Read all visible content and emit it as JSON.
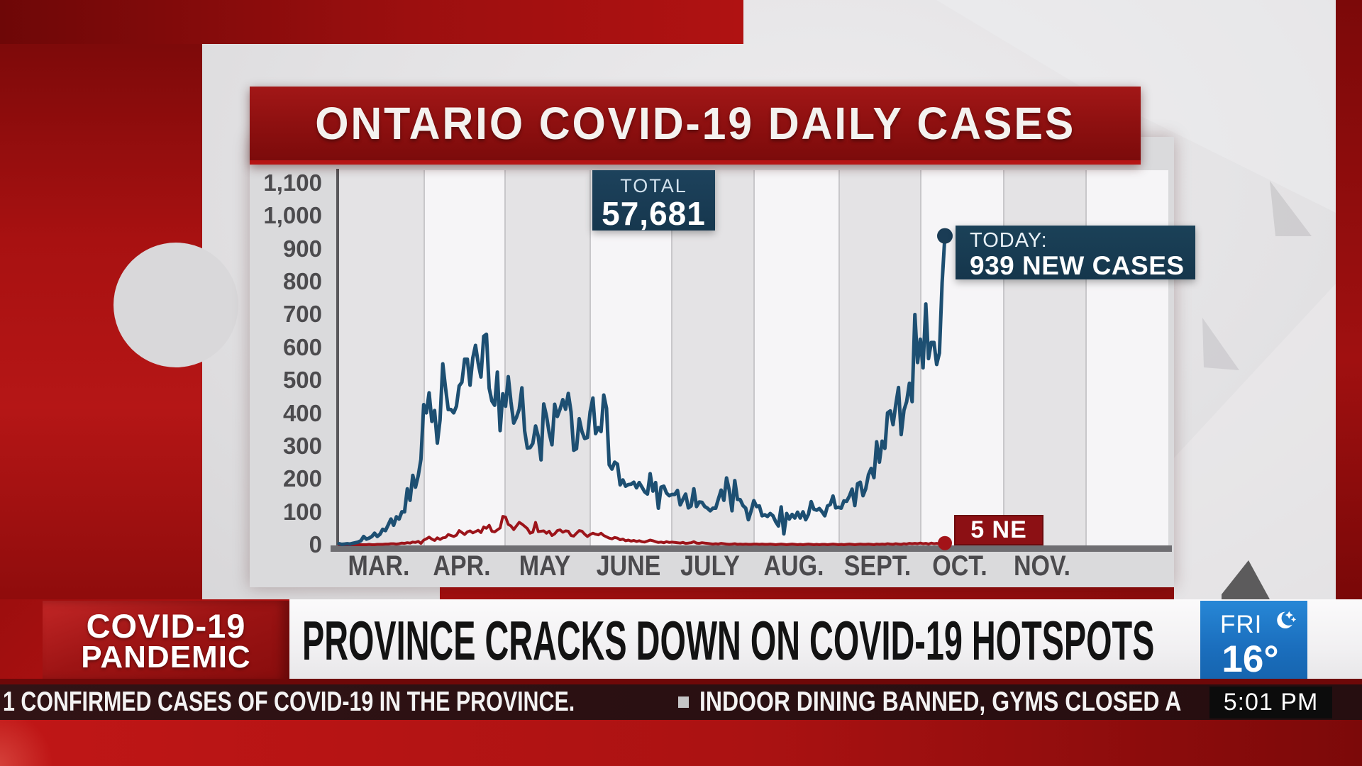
{
  "chart_data": {
    "type": "line",
    "title": "ONTARIO COVID-19 DAILY CASES",
    "x_axis": {
      "labels": [
        "MAR.",
        "APR.",
        "MAY",
        "JUNE",
        "JULY",
        "AUG.",
        "SEPT.",
        "OCT.",
        "NOV."
      ],
      "range": "one value per day, March 1 to October 9"
    },
    "y_axis": {
      "min": 0,
      "max": 1100,
      "tick_step": 100,
      "tick_labels": [
        "1,100",
        "1,000",
        "900",
        "800",
        "700",
        "600",
        "500",
        "400",
        "300",
        "200",
        "100",
        "0"
      ]
    },
    "grid": "alternating vertical month bands, no horizontal gridlines",
    "legend": "none",
    "series": [
      {
        "name": "daily new cases",
        "color": "#1d4f72",
        "endpoint_dot": true,
        "values": [
          3,
          1,
          2,
          3,
          2,
          4,
          6,
          8,
          12,
          25,
          17,
          20,
          25,
          35,
          25,
          32,
          47,
          43,
          60,
          78,
          59,
          85,
          78,
          100,
          100,
          170,
          135,
          211,
          175,
          210,
          260,
          426,
          401,
          462,
          375,
          408,
          309,
          379,
          550,
          478,
          411,
          411,
          401,
          421,
          483,
          494,
          564,
          564,
          485,
          568,
          606,
          551,
          510,
          634,
          640,
          476,
          437,
          424,
          525,
          347,
          459,
          421,
          511,
          434,
          370,
          387,
          412,
          477,
          346,
          294,
          295,
          308,
          361,
          329,
          258,
          428,
          391,
          340,
          304,
          427,
          390,
          413,
          441,
          412,
          460,
          404,
          287,
          292,
          383,
          344,
          323,
          326,
          404,
          446,
          338,
          356,
          344,
          455,
          415,
          243,
          230,
          251,
          245,
          182,
          197,
          178,
          183,
          184,
          190,
          173,
          189,
          175,
          161,
          154,
          216,
          163,
          189,
          111,
          175,
          178,
          157,
          149,
          153,
          153,
          165,
          121,
          138,
          154,
          112,
          118,
          170,
          116,
          130,
          129,
          116,
          111,
          103,
          111,
          111,
          139,
          166,
          135,
          203,
          165,
          103,
          195,
          138,
          137,
          119,
          111,
          76,
          103,
          134,
          116,
          118,
          88,
          91,
          86,
          95,
          88,
          70,
          57,
          115,
          33,
          95,
          78,
          92,
          81,
          99,
          81,
          100,
          76,
          92,
          131,
          108,
          105,
          110,
          100,
          88,
          118,
          122,
          148,
          112,
          114,
          111,
          133,
          132,
          148,
          169,
          119,
          185,
          190,
          149,
          170,
          213,
          232,
          204,
          313,
          251,
          315,
          293,
          401,
          407,
          365,
          425,
          478,
          335,
          409,
          435,
          491,
          435,
          700,
          554,
          625,
          538,
          732,
          566,
          615,
          615,
          548,
          583,
          797,
          939
        ]
      },
      {
        "name": "daily deaths",
        "color": "#9c141a",
        "endpoint_dot": true,
        "values": [
          0,
          0,
          0,
          0,
          0,
          0,
          0,
          0,
          0,
          0,
          0,
          1,
          0,
          0,
          1,
          1,
          1,
          2,
          2,
          3,
          3,
          2,
          3,
          5,
          4,
          6,
          5,
          8,
          7,
          10,
          4,
          14,
          18,
          23,
          17,
          13,
          21,
          16,
          21,
          22,
          31,
          28,
          25,
          29,
          43,
          37,
          31,
          39,
          42,
          36,
          40,
          44,
          37,
          54,
          50,
          59,
          41,
          39,
          45,
          51,
          86,
          84,
          62,
          57,
          46,
          57,
          68,
          63,
          56,
          49,
          35,
          38,
          68,
          40,
          41,
          42,
          35,
          41,
          28,
          33,
          43,
          45,
          38,
          42,
          41,
          28,
          26,
          35,
          43,
          41,
          32,
          25,
          31,
          35,
          32,
          30,
          35,
          28,
          24,
          20,
          18,
          22,
          20,
          15,
          17,
          12,
          14,
          11,
          13,
          10,
          12,
          9,
          8,
          11,
          14,
          12,
          9,
          7,
          8,
          6,
          9,
          7,
          8,
          7,
          6,
          5,
          7,
          4,
          5,
          6,
          9,
          5,
          4,
          6,
          5,
          4,
          3,
          2,
          3,
          2,
          4,
          3,
          2,
          1,
          2,
          3,
          1,
          2,
          1,
          2,
          1,
          1,
          2,
          2,
          1,
          2,
          1,
          1,
          2,
          1,
          0,
          1,
          2,
          1,
          0,
          1,
          2,
          1,
          0,
          1,
          0,
          1,
          2,
          1,
          0,
          1,
          0,
          1,
          1,
          0,
          1,
          2,
          1,
          0,
          1,
          0,
          1,
          2,
          1,
          0,
          1,
          2,
          1,
          1,
          2,
          1,
          0,
          2,
          1,
          2,
          1,
          3,
          2,
          1,
          3,
          2,
          1,
          3,
          2,
          4,
          3,
          4,
          3,
          5,
          3,
          4,
          2,
          5,
          3,
          4,
          3,
          4,
          5
        ]
      }
    ],
    "annotations": [
      "TOTAL 57,681",
      "TODAY: 939 NEW CASES",
      "5 NE"
    ]
  },
  "badges": {
    "total": {
      "label": "TOTAL",
      "value": "57,681"
    },
    "today": {
      "label": "TODAY:",
      "value": "939 NEW CASES"
    },
    "deaths": {
      "text": "5 NE"
    }
  },
  "lower_third": {
    "topic_line1": "COVID-19",
    "topic_line2": "PANDEMIC",
    "headline": "PROVINCE CRACKS DOWN ON COVID-19 HOTSPOTS"
  },
  "weather": {
    "day": "FRI",
    "temperature": "16°",
    "icon": "crescent-moon-icon"
  },
  "ticker": {
    "item1": "1 CONFIRMED CASES OF COVID-19 IN THE PROVINCE.",
    "item2": "INDOOR DINING BANNED, GYMS CLOSED A",
    "time": "5:01 PM"
  },
  "colors": {
    "banner_red": "#8e1010",
    "navy_badge": "#16374e",
    "cases_line": "#1d4f72",
    "deaths_line": "#9c141a",
    "weather_blue": "#1b6fbe",
    "background_red": "#a81010"
  }
}
